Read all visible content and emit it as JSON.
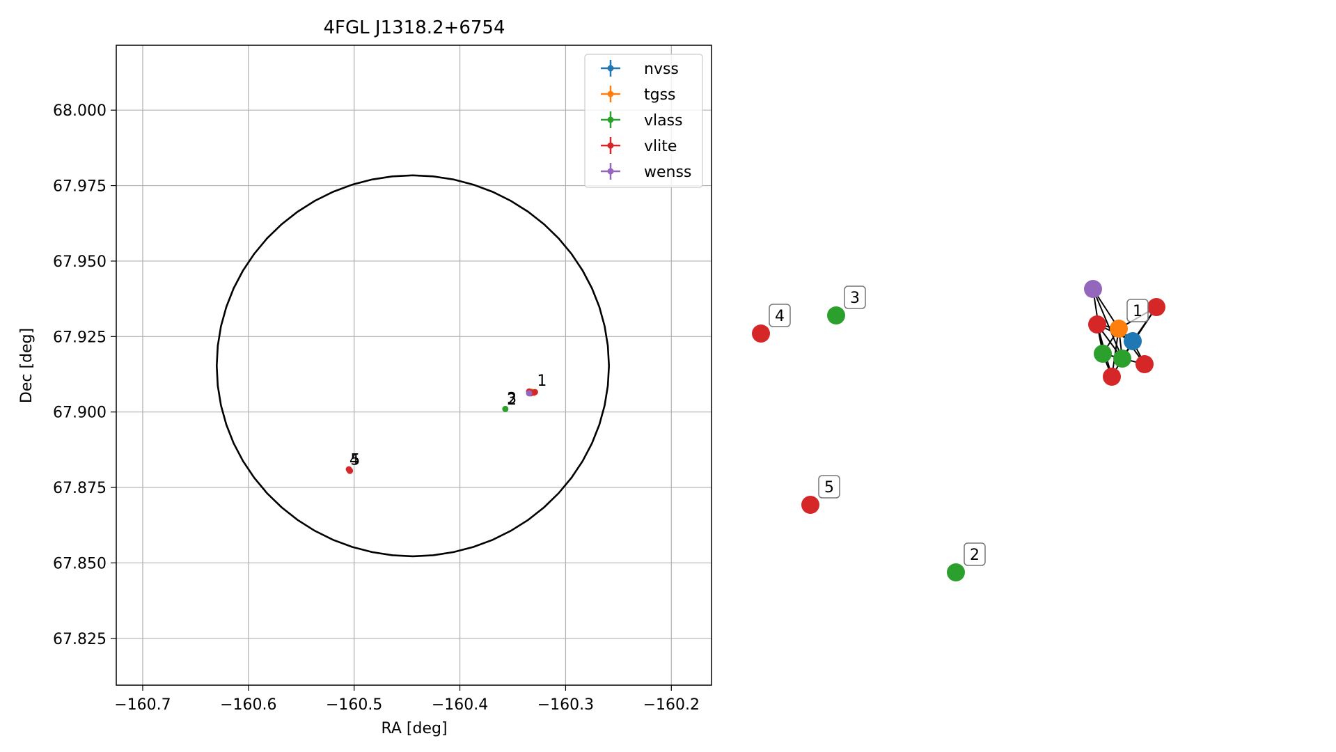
{
  "chart_data": [
    {
      "type": "scatter",
      "title": "4FGL J1318.2+6754",
      "xlabel": "RA [deg]",
      "ylabel": "Dec [deg]",
      "xlim": [
        -160.725,
        -160.162
      ],
      "ylim": [
        67.8095,
        68.0215
      ],
      "xticks": [
        -160.7,
        -160.6,
        -160.5,
        -160.4,
        -160.3,
        -160.2
      ],
      "xtick_labels": [
        "−160.7",
        "−160.6",
        "−160.5",
        "−160.4",
        "−160.3",
        "−160.2"
      ],
      "yticks": [
        67.825,
        67.85,
        67.875,
        67.9,
        67.925,
        67.95,
        67.975,
        68.0
      ],
      "ytick_labels": [
        "67.825",
        "67.850",
        "67.875",
        "67.900",
        "67.925",
        "67.950",
        "67.975",
        "68.000"
      ],
      "grid": true,
      "legend_position": "top-right",
      "ellipse": {
        "center_ra": -160.4445,
        "center_dec": 67.9153,
        "semi_ra": 0.1855,
        "semi_dec": 0.0631
      },
      "series": [
        {
          "name": "nvss",
          "color": "#1f77b4",
          "points": [
            [
              -160.331,
              67.9065
            ]
          ]
        },
        {
          "name": "tgss",
          "color": "#ff7f0e",
          "points": [
            [
              -160.332,
              67.9067
            ]
          ]
        },
        {
          "name": "vlass",
          "color": "#2ca02c",
          "points": [
            [
              -160.357,
              67.901
            ],
            [
              -160.3335,
              67.9063
            ],
            [
              -160.3325,
              67.9065
            ]
          ]
        },
        {
          "name": "vlite",
          "color": "#d62728",
          "points": [
            [
              -160.505,
              67.881
            ],
            [
              -160.504,
              67.8805
            ],
            [
              -160.3345,
              67.9068
            ],
            [
              -160.329,
              67.9066
            ],
            [
              -160.333,
              67.9062
            ],
            [
              -160.33,
              67.9064
            ]
          ]
        },
        {
          "name": "wenss",
          "color": "#9467bd",
          "points": [
            [
              -160.3345,
              67.9062
            ]
          ]
        }
      ],
      "annotations": [
        {
          "text": "1",
          "ra": -160.327,
          "dec": 67.9087
        },
        {
          "text": "2",
          "ra": -160.3555,
          "dec": 67.9025
        },
        {
          "text": "3",
          "ra": -160.3555,
          "dec": 67.9028
        },
        {
          "text": "4",
          "ra": -160.5045,
          "dec": 67.8825
        },
        {
          "text": "5",
          "ra": -160.5035,
          "dec": 67.8825
        }
      ]
    },
    {
      "type": "network",
      "nodes": [
        {
          "id": "n4",
          "color": "#d62728",
          "label": "4"
        },
        {
          "id": "n3",
          "color": "#2ca02c",
          "label": "3"
        },
        {
          "id": "n5",
          "color": "#d62728",
          "label": "5"
        },
        {
          "id": "n2",
          "color": "#2ca02c",
          "label": "2"
        },
        {
          "id": "wenss",
          "color": "#9467bd",
          "label": ""
        },
        {
          "id": "tgss",
          "color": "#ff7f0e",
          "label": "1"
        },
        {
          "id": "nvss",
          "color": "#1f77b4",
          "label": ""
        },
        {
          "id": "vlite_a",
          "color": "#d62728",
          "label": ""
        },
        {
          "id": "vlite_b",
          "color": "#d62728",
          "label": ""
        },
        {
          "id": "vlite_c",
          "color": "#d62728",
          "label": ""
        },
        {
          "id": "vlite_d",
          "color": "#d62728",
          "label": ""
        },
        {
          "id": "vlass_a",
          "color": "#2ca02c",
          "label": ""
        },
        {
          "id": "vlass_b",
          "color": "#2ca02c",
          "label": ""
        }
      ],
      "edges": [
        [
          "wenss",
          "tgss"
        ],
        [
          "wenss",
          "vlass_a"
        ],
        [
          "wenss",
          "vlass_b"
        ],
        [
          "tgss",
          "nvss"
        ],
        [
          "tgss",
          "vlite_b"
        ],
        [
          "tgss",
          "vlite_c"
        ],
        [
          "tgss",
          "vlite_d"
        ],
        [
          "tgss",
          "vlass_a"
        ],
        [
          "tgss",
          "vlass_b"
        ],
        [
          "tgss",
          "vlite_a"
        ],
        [
          "nvss",
          "vlite_b"
        ],
        [
          "nvss",
          "vlite_c"
        ],
        [
          "nvss",
          "vlass_b"
        ],
        [
          "nvss",
          "vlite_a"
        ],
        [
          "vlite_a",
          "vlass_a"
        ],
        [
          "vlite_a",
          "vlass_b"
        ],
        [
          "vlite_a",
          "vlite_d"
        ],
        [
          "vlite_b",
          "vlass_b"
        ],
        [
          "vlite_d",
          "vlass_a"
        ],
        [
          "vlite_d",
          "vlass_b"
        ],
        [
          "vlass_a",
          "vlass_b"
        ],
        [
          "vlass_a",
          "vlite_c"
        ]
      ]
    }
  ]
}
